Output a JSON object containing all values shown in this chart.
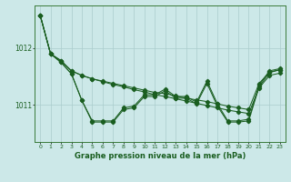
{
  "title": "Graphe pression niveau de la mer (hPa)",
  "bg_color": "#cce8e8",
  "grid_color": "#aacccc",
  "line_color": "#1a5e20",
  "x_ticks": [
    0,
    1,
    2,
    3,
    4,
    5,
    6,
    7,
    8,
    9,
    10,
    11,
    12,
    13,
    14,
    15,
    16,
    17,
    18,
    19,
    20,
    21,
    22,
    23
  ],
  "y_ticks": [
    1011,
    1012
  ],
  "ylim": [
    1010.35,
    1012.75
  ],
  "xlim": [
    -0.5,
    23.5
  ],
  "line1": [
    1012.58,
    1011.9,
    1011.78,
    1011.6,
    1011.52,
    1011.46,
    1011.42,
    1011.38,
    1011.34,
    1011.3,
    1011.26,
    1011.22,
    1011.2,
    1011.16,
    1011.12,
    1011.09,
    1011.06,
    1011.02,
    1010.98,
    1010.95,
    1010.92,
    1011.38,
    1011.58,
    1011.62
  ],
  "line2": [
    1012.58,
    1011.9,
    1011.78,
    1011.6,
    1011.52,
    1011.46,
    1011.41,
    1011.36,
    1011.32,
    1011.27,
    1011.23,
    1011.18,
    1011.15,
    1011.11,
    1011.07,
    1011.03,
    1010.99,
    1010.95,
    1010.91,
    1010.88,
    1010.85,
    1011.3,
    1011.52,
    1011.56
  ],
  "line3": [
    1012.58,
    1011.9,
    1011.75,
    1011.55,
    1011.08,
    1010.72,
    1010.72,
    1010.72,
    1010.95,
    1010.98,
    1011.18,
    1011.18,
    1011.28,
    1011.15,
    1011.15,
    1011.05,
    1011.42,
    1011.02,
    1010.72,
    1010.72,
    1010.75,
    1011.35,
    1011.6,
    1011.64
  ],
  "line4": [
    1012.58,
    1011.9,
    1011.75,
    1011.55,
    1011.08,
    1010.7,
    1010.7,
    1010.7,
    1010.92,
    1010.95,
    1011.15,
    1011.15,
    1011.25,
    1011.12,
    1011.12,
    1011.02,
    1011.38,
    1010.98,
    1010.7,
    1010.7,
    1010.72,
    1011.32,
    1011.57,
    1011.62
  ]
}
